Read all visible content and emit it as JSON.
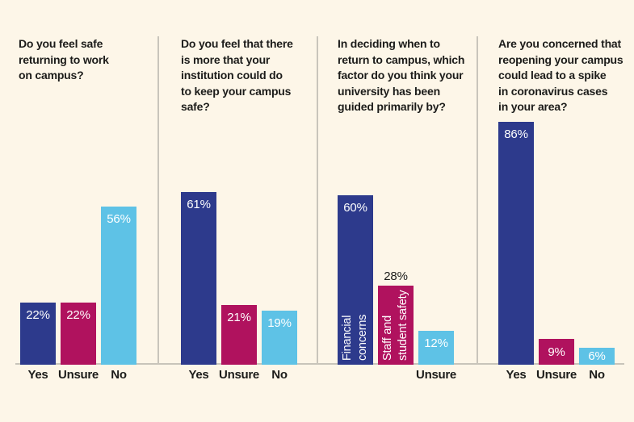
{
  "colors": {
    "background": "#fdf6e8",
    "navy": "#2d3a8c",
    "magenta": "#b0125e",
    "lightblue": "#5ec2e6",
    "line_gray": "#c9c5bb",
    "text": "#1c1c1a",
    "value_label_inside": "#ffffff"
  },
  "chart_data": [
    {
      "type": "bar",
      "title": "Do you feel safe returning to work on campus?",
      "title_lines": [
        "Do you feel safe",
        "returning to work",
        "on campus?"
      ],
      "unit": "%",
      "ylim": [
        0,
        100
      ],
      "categories": [
        "Yes",
        "Unsure",
        "No"
      ],
      "values": [
        22,
        22,
        56
      ],
      "bars": [
        {
          "category": "Yes",
          "value": 22,
          "label": "22%",
          "color_key": "navy",
          "label_placement": "inside"
        },
        {
          "category": "Unsure",
          "value": 22,
          "label": "22%",
          "color_key": "magenta",
          "label_placement": "inside"
        },
        {
          "category": "No",
          "value": 56,
          "label": "56%",
          "color_key": "lightblue",
          "label_placement": "inside"
        }
      ]
    },
    {
      "type": "bar",
      "title": "Do you feel that there is more that your institution could do to keep your campus safe?",
      "title_lines": [
        "Do you feel that there",
        "is more that your",
        "institution could do",
        "to keep your campus",
        "safe?"
      ],
      "unit": "%",
      "ylim": [
        0,
        100
      ],
      "categories": [
        "Yes",
        "Unsure",
        "No"
      ],
      "values": [
        61,
        21,
        19
      ],
      "bars": [
        {
          "category": "Yes",
          "value": 61,
          "label": "61%",
          "color_key": "navy",
          "label_placement": "inside"
        },
        {
          "category": "Unsure",
          "value": 21,
          "label": "21%",
          "color_key": "magenta",
          "label_placement": "inside"
        },
        {
          "category": "No",
          "value": 19,
          "label": "19%",
          "color_key": "lightblue",
          "label_placement": "inside"
        }
      ]
    },
    {
      "type": "bar",
      "title": "In deciding when to return to campus, which factor do you think your university has been guided primarily by?",
      "title_lines": [
        "In deciding when to",
        "return to campus, which",
        "factor do you think your",
        "university has been",
        "guided primarily by?"
      ],
      "unit": "%",
      "ylim": [
        0,
        100
      ],
      "categories": [
        "Financial concerns",
        "Staff and student safety",
        "Unsure"
      ],
      "values": [
        60,
        28,
        12
      ],
      "bars": [
        {
          "category": "Financial concerns",
          "value": 60,
          "label": "60%",
          "color_key": "navy",
          "label_placement": "inside",
          "in_bar_lines": [
            "Financial",
            "concerns"
          ],
          "show_axis_label": false
        },
        {
          "category": "Staff and student safety",
          "value": 28,
          "label": "28%",
          "color_key": "magenta",
          "label_placement": "outside",
          "in_bar_lines": [
            "Staff and",
            "student safety"
          ],
          "show_axis_label": false
        },
        {
          "category": "Unsure",
          "value": 12,
          "label": "12%",
          "color_key": "lightblue",
          "label_placement": "inside"
        }
      ]
    },
    {
      "type": "bar",
      "title": "Are you concerned that reopening your campus could lead to a spike in coronavirus cases in your area?",
      "title_lines": [
        "Are you concerned that",
        "reopening your campus",
        "could lead to a spike",
        "in coronavirus cases",
        "in your area?"
      ],
      "unit": "%",
      "ylim": [
        0,
        100
      ],
      "categories": [
        "Yes",
        "Unsure",
        "No"
      ],
      "values": [
        86,
        9,
        6
      ],
      "bars": [
        {
          "category": "Yes",
          "value": 86,
          "label": "86%",
          "color_key": "navy",
          "label_placement": "inside"
        },
        {
          "category": "Unsure",
          "value": 9,
          "label": "9%",
          "color_key": "magenta",
          "label_placement": "center"
        },
        {
          "category": "No",
          "value": 6,
          "label": "6%",
          "color_key": "lightblue",
          "label_placement": "center"
        }
      ]
    }
  ]
}
